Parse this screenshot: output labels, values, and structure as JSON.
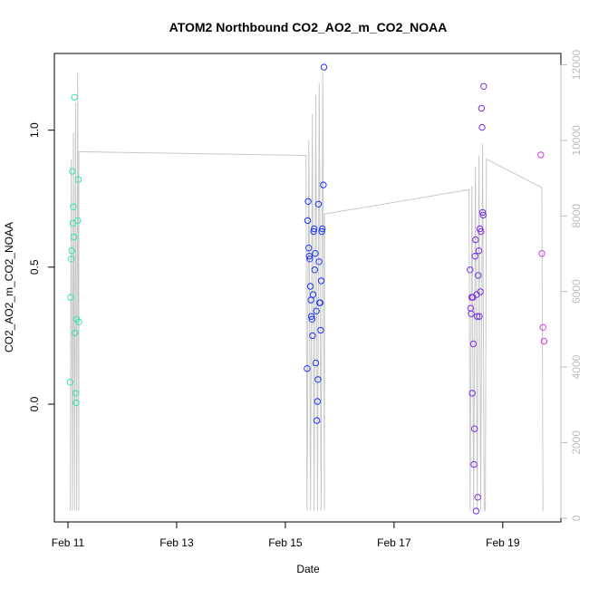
{
  "chart_data": {
    "type": "scatter",
    "title": "ATOM2 Northbound CO2_AO2_m_CO2_NOAA",
    "xlabel": "Date",
    "ylabel": "CO2_AO2_m_CO2_NOAA",
    "x_ticks": [
      {
        "label": "Feb 11",
        "value": 11
      },
      {
        "label": "Feb 13",
        "value": 13
      },
      {
        "label": "Feb 15",
        "value": 15
      },
      {
        "label": "Feb 17",
        "value": 17
      },
      {
        "label": "Feb 19",
        "value": 19
      }
    ],
    "xlim": [
      10.75,
      20.07
    ],
    "ylim": [
      -0.43,
      1.28
    ],
    "y_ticks": [
      0.0,
      0.5,
      1.0
    ],
    "y_tick_labels": [
      "0.0",
      "0.5",
      "1.0"
    ],
    "y2lim": [
      -100,
      12300
    ],
    "y2_ticks": [
      0,
      2000,
      4000,
      6000,
      8000,
      10000,
      12000
    ],
    "grid": false,
    "colors": {
      "flight1": "#33e6b0",
      "flight2": "#1f36f2",
      "flight3": "#7a2fe6",
      "flight4": "#d63ae0",
      "altitude": "#c8c8c8",
      "right_axis": "#bdbdbd"
    },
    "series": [
      {
        "color": "#33e6b0",
        "x": [
          11.04,
          11.05,
          11.06,
          11.07,
          11.08,
          11.09,
          11.1,
          11.11,
          11.12,
          11.13,
          11.14,
          11.15,
          11.16,
          11.18,
          11.19,
          11.2
        ],
        "y": [
          0.08,
          0.39,
          0.53,
          0.56,
          0.85,
          0.66,
          0.72,
          0.61,
          1.12,
          0.26,
          0.04,
          0.005,
          0.31,
          0.67,
          0.82,
          0.3
        ]
      },
      {
        "color": "#1f36f2",
        "x": [
          15.4,
          15.41,
          15.42,
          15.43,
          15.44,
          15.45,
          15.46,
          15.47,
          15.48,
          15.49,
          15.5,
          15.51,
          15.52,
          15.53,
          15.54,
          15.55,
          15.56,
          15.57,
          15.58,
          15.59,
          15.6,
          15.61,
          15.62,
          15.63,
          15.64,
          15.65,
          15.66,
          15.67,
          15.68,
          15.7
        ],
        "y": [
          0.13,
          0.67,
          0.74,
          0.57,
          0.54,
          0.53,
          0.43,
          0.38,
          0.32,
          0.31,
          0.25,
          0.4,
          0.63,
          0.64,
          0.49,
          0.55,
          0.15,
          0.34,
          -0.06,
          0.01,
          0.09,
          0.73,
          0.52,
          0.37,
          0.37,
          0.27,
          0.45,
          0.63,
          0.64,
          0.8
        ],
        "x_extra": [
          15.71
        ],
        "y_extra": [
          1.23
        ]
      },
      {
        "color": "#7a2fe6",
        "x": [
          18.4,
          18.41,
          18.42,
          18.43,
          18.44,
          18.45,
          18.46,
          18.47,
          18.48,
          18.49,
          18.5,
          18.51,
          18.52,
          18.53,
          18.54,
          18.55,
          18.56,
          18.57,
          18.58,
          18.59,
          18.6,
          18.61,
          18.62,
          18.63,
          18.64,
          18.65
        ],
        "y": [
          0.49,
          0.35,
          0.33,
          0.39,
          0.04,
          0.39,
          0.22,
          -0.22,
          -0.09,
          0.54,
          0.6,
          -0.39,
          0.4,
          0.32,
          -0.34,
          0.47,
          0.56,
          0.32,
          0.64,
          0.41,
          0.63,
          1.08,
          1.01,
          0.7,
          0.69,
          1.16
        ]
      },
      {
        "color": "#d63ae0",
        "x": [
          19.7,
          19.72,
          19.74,
          19.76
        ],
        "y": [
          0.91,
          0.55,
          0.28,
          0.23
        ]
      }
    ],
    "altitude": {
      "axis": "right",
      "color": "#c8c8c8",
      "flights": [
        {
          "x_start": 11.04,
          "x_end": 11.2,
          "low": 200,
          "peaks": [
            9500,
            10200,
            11000,
            11800
          ],
          "cruise_end": 9700
        },
        {
          "x_start": 15.4,
          "x_end": 15.72,
          "low": 200,
          "peaks": [
            10000,
            10700,
            11200,
            11500,
            11800
          ],
          "cruise_start": 9600,
          "cruise_end": 8050
        },
        {
          "x_start": 18.4,
          "x_end": 18.66,
          "low": 200,
          "peaks": [
            8800,
            9300,
            9600,
            9900
          ],
          "cruise_start": 8700
        },
        {
          "x_start": 18.68,
          "x_end": 19.72,
          "low": 200,
          "start": 9500,
          "end": 8750
        }
      ]
    }
  }
}
